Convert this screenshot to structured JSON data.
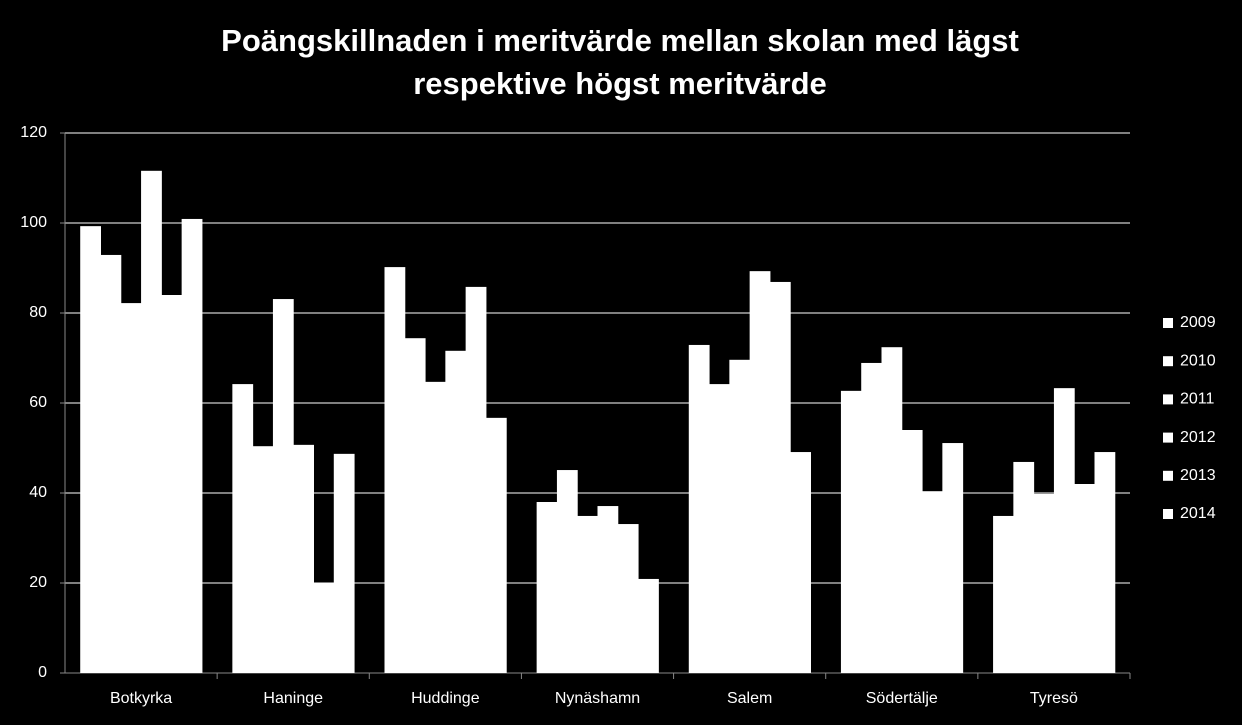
{
  "chart_data": {
    "type": "bar",
    "title": [
      "Poängskillnaden i meritvärde mellan skolan med lägst",
      "respektive högst meritvärde"
    ],
    "categories": [
      "Botkyrka",
      "Haninge",
      "Huddinge",
      "Nynäshamn",
      "Salem",
      "Södertälje",
      "Tyresö"
    ],
    "series": [
      {
        "name": "2009",
        "color": "#ffffff",
        "values": [
          99.3,
          64.2,
          90.2,
          38,
          72.9,
          62.7,
          34.9
        ]
      },
      {
        "name": "2010",
        "color": "#ffffff",
        "values": [
          92.9,
          50.4,
          74.4,
          45.1,
          64.2,
          68.9,
          46.9
        ]
      },
      {
        "name": "2011",
        "color": "#ffffff",
        "values": [
          82.2,
          83.1,
          64.7,
          34.9,
          69.6,
          72.4,
          39.8
        ]
      },
      {
        "name": "2012",
        "color": "#ffffff",
        "values": [
          111.6,
          50.7,
          71.6,
          37.1,
          89.3,
          54,
          63.3
        ]
      },
      {
        "name": "2013",
        "color": "#ffffff",
        "values": [
          84,
          20,
          85.8,
          33.1,
          86.9,
          40.4,
          42
        ]
      },
      {
        "name": "2014",
        "color": "#ffffff",
        "values": [
          100.9,
          48.7,
          56.7,
          20.9,
          49.1,
          51.1,
          49.1
        ]
      }
    ],
    "ylim": [
      0,
      120
    ],
    "yticks": [
      0,
      20,
      40,
      60,
      80,
      100,
      120
    ],
    "grid": true,
    "legend": "right"
  }
}
